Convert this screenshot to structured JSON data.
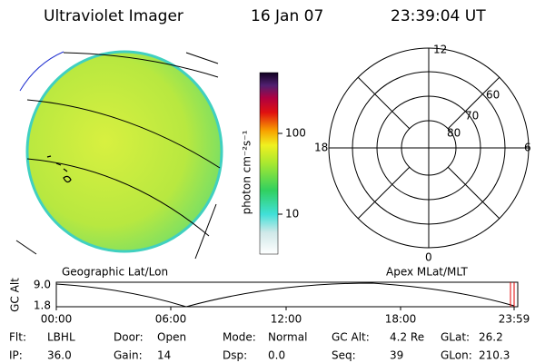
{
  "header": {
    "title": "Ultraviolet Imager",
    "date": "16 Jan 07",
    "time": "23:39:04 UT"
  },
  "colorbar": {
    "label": "photon cm⁻²s⁻¹",
    "ticks": [
      "100",
      "10"
    ]
  },
  "polar": {
    "top": "12",
    "bottom": "0",
    "left": "18",
    "right": "6",
    "rings": [
      "60",
      "70",
      "80"
    ]
  },
  "projections": {
    "left": "Geographic Lat/Lon",
    "right": "Apex MLat/MLT"
  },
  "altitude": {
    "axis_label": "GC Alt",
    "ticks": [
      "9.0",
      "1.8"
    ],
    "time_ticks": [
      "00:00",
      "06:00",
      "12:00",
      "18:00",
      "23:59"
    ]
  },
  "status": [
    [
      {
        "label": "Flt:",
        "value": "LBHL"
      },
      {
        "label": "Door:",
        "value": "Open"
      },
      {
        "label": "Mode:",
        "value": "Normal"
      },
      {
        "label": "GC Alt:",
        "value": "4.2 Re"
      },
      {
        "label": "GLat:",
        "value": "26.2"
      }
    ],
    [
      {
        "label": "IP:",
        "value": "36.0"
      },
      {
        "label": "Gain:",
        "value": "14"
      },
      {
        "label": "Dsp:",
        "value": "0.0"
      },
      {
        "label": "Seq:",
        "value": "39"
      },
      {
        "label": "GLon:",
        "value": "210.3"
      }
    ]
  ]
}
